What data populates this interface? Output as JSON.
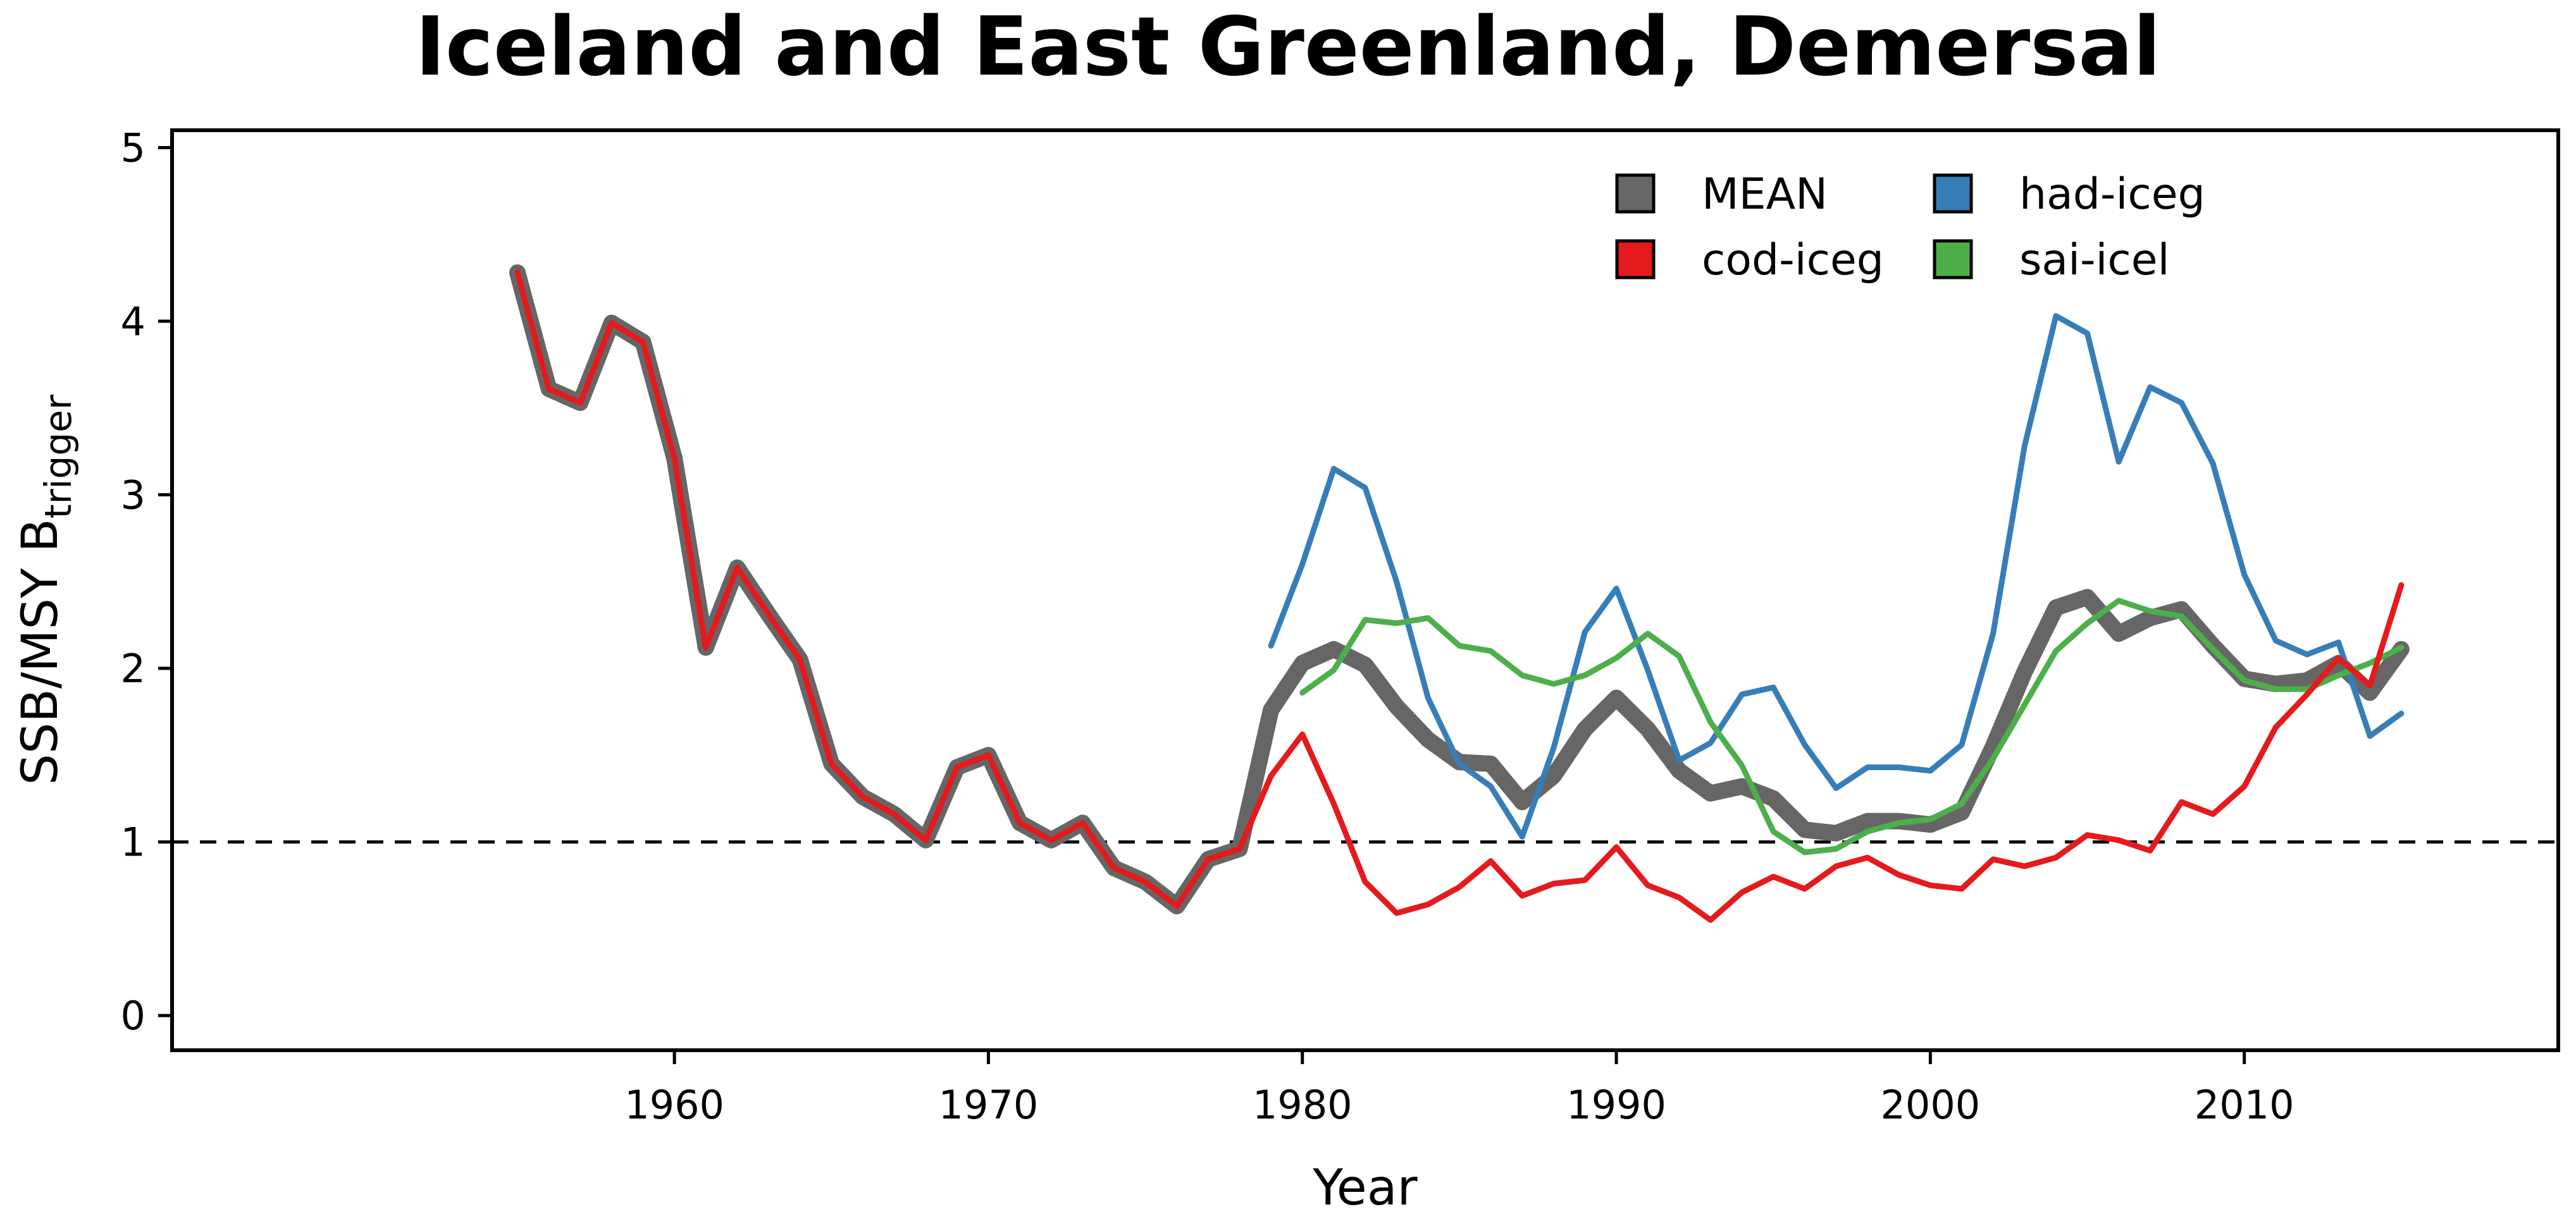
{
  "chart_data": {
    "type": "line",
    "title": "Iceland and East Greenland, Demersal",
    "xlabel": "Year",
    "ylabel": {
      "main": "SSB/MSY B",
      "subscript": "trigger"
    },
    "xlim": [
      1944,
      2020
    ],
    "ylim": [
      -0.2,
      5.1
    ],
    "x_ticks": [
      1960,
      1970,
      1980,
      1990,
      2000,
      2010
    ],
    "y_ticks": [
      0,
      1,
      2,
      3,
      4,
      5
    ],
    "reference_line": {
      "y": 1,
      "style": "dashed"
    },
    "grid": false,
    "legend": {
      "placement": "top-right",
      "columns": 2
    },
    "series": [
      {
        "name": "MEAN",
        "color": "#666666",
        "emphasis": "thick",
        "x": [
          1955,
          1956,
          1957,
          1958,
          1959,
          1960,
          1961,
          1962,
          1963,
          1964,
          1965,
          1966,
          1967,
          1968,
          1969,
          1970,
          1971,
          1972,
          1973,
          1974,
          1975,
          1976,
          1977,
          1978,
          1979,
          1980,
          1981,
          1982,
          1983,
          1984,
          1985,
          1986,
          1987,
          1988,
          1989,
          1990,
          1991,
          1992,
          1993,
          1994,
          1995,
          1996,
          1997,
          1998,
          1999,
          2000,
          2001,
          2002,
          2003,
          2004,
          2005,
          2006,
          2007,
          2008,
          2009,
          2010,
          2011,
          2012,
          2013,
          2014,
          2015
        ],
        "y": [
          4.28,
          3.61,
          3.53,
          3.99,
          3.88,
          3.21,
          2.12,
          2.58,
          2.31,
          2.05,
          1.45,
          1.26,
          1.16,
          1.01,
          1.43,
          1.5,
          1.11,
          1.01,
          1.11,
          0.85,
          0.77,
          0.63,
          0.9,
          0.96,
          1.76,
          2.03,
          2.11,
          2.02,
          1.78,
          1.59,
          1.46,
          1.45,
          1.23,
          1.38,
          1.65,
          1.83,
          1.65,
          1.41,
          1.28,
          1.32,
          1.25,
          1.07,
          1.05,
          1.12,
          1.12,
          1.1,
          1.17,
          1.55,
          1.98,
          2.35,
          2.41,
          2.2,
          2.29,
          2.34,
          2.13,
          1.94,
          1.91,
          1.93,
          2.03,
          1.86,
          2.11
        ]
      },
      {
        "name": "cod-iceg",
        "color": "#e41a1c",
        "x": [
          1955,
          1956,
          1957,
          1958,
          1959,
          1960,
          1961,
          1962,
          1963,
          1964,
          1965,
          1966,
          1967,
          1968,
          1969,
          1970,
          1971,
          1972,
          1973,
          1974,
          1975,
          1976,
          1977,
          1978,
          1979,
          1980,
          1981,
          1982,
          1983,
          1984,
          1985,
          1986,
          1987,
          1988,
          1989,
          1990,
          1991,
          1992,
          1993,
          1994,
          1995,
          1996,
          1997,
          1998,
          1999,
          2000,
          2001,
          2002,
          2003,
          2004,
          2005,
          2006,
          2007,
          2008,
          2009,
          2010,
          2011,
          2012,
          2013,
          2014,
          2015
        ],
        "y": [
          4.28,
          3.61,
          3.53,
          3.99,
          3.88,
          3.21,
          2.12,
          2.58,
          2.31,
          2.05,
          1.45,
          1.26,
          1.16,
          1.01,
          1.43,
          1.5,
          1.11,
          1.01,
          1.11,
          0.85,
          0.77,
          0.63,
          0.9,
          0.96,
          1.38,
          1.62,
          1.22,
          0.77,
          0.59,
          0.64,
          0.74,
          0.89,
          0.69,
          0.76,
          0.78,
          0.97,
          0.75,
          0.68,
          0.55,
          0.71,
          0.8,
          0.73,
          0.86,
          0.91,
          0.81,
          0.75,
          0.73,
          0.9,
          0.86,
          0.91,
          1.04,
          1.01,
          0.95,
          1.23,
          1.16,
          1.32,
          1.66,
          1.85,
          2.06,
          1.9,
          2.48
        ]
      },
      {
        "name": "had-iceg",
        "color": "#377eb8",
        "x": [
          1979,
          1980,
          1981,
          1982,
          1983,
          1984,
          1985,
          1986,
          1987,
          1988,
          1989,
          1990,
          1991,
          1992,
          1993,
          1994,
          1995,
          1996,
          1997,
          1998,
          1999,
          2000,
          2001,
          2002,
          2003,
          2004,
          2005,
          2006,
          2007,
          2008,
          2009,
          2010,
          2011,
          2012,
          2013,
          2014,
          2015
        ],
        "y": [
          2.13,
          2.6,
          3.15,
          3.04,
          2.5,
          1.83,
          1.45,
          1.32,
          1.03,
          1.54,
          2.21,
          2.46,
          1.99,
          1.47,
          1.57,
          1.85,
          1.89,
          1.56,
          1.31,
          1.43,
          1.43,
          1.41,
          1.56,
          2.2,
          3.28,
          4.03,
          3.93,
          3.19,
          3.62,
          3.53,
          3.18,
          2.54,
          2.16,
          2.08,
          2.15,
          1.61,
          1.74
        ]
      },
      {
        "name": "sai-icel",
        "color": "#4daf4a",
        "x": [
          1980,
          1981,
          1982,
          1983,
          1984,
          1985,
          1986,
          1987,
          1988,
          1989,
          1990,
          1991,
          1992,
          1993,
          1994,
          1995,
          1996,
          1997,
          1998,
          1999,
          2000,
          2001,
          2002,
          2003,
          2004,
          2005,
          2006,
          2007,
          2008,
          2009,
          2010,
          2011,
          2012,
          2013,
          2014,
          2015
        ],
        "y": [
          1.86,
          1.99,
          2.28,
          2.26,
          2.29,
          2.13,
          2.1,
          1.96,
          1.91,
          1.96,
          2.06,
          2.2,
          2.07,
          1.69,
          1.44,
          1.06,
          0.94,
          0.96,
          1.06,
          1.11,
          1.13,
          1.22,
          1.48,
          1.79,
          2.1,
          2.26,
          2.39,
          2.33,
          2.3,
          2.11,
          1.93,
          1.88,
          1.88,
          1.96,
          2.03,
          2.12
        ]
      }
    ]
  }
}
